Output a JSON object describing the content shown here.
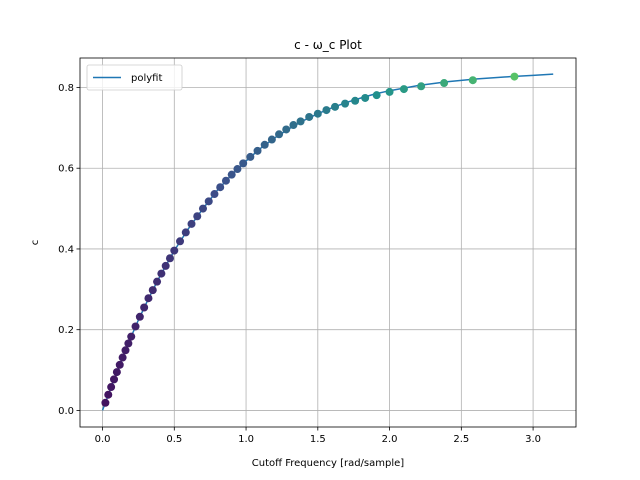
{
  "chart_data": {
    "type": "scatter",
    "title": "c - ω_c Plot",
    "xlabel": "Cutoff Frequency [rad/sample]",
    "ylabel": "c",
    "xlim": [
      -0.157,
      3.299
    ],
    "ylim": [
      -0.041,
      0.873
    ],
    "xticks": [
      0.0,
      0.5,
      1.0,
      1.5,
      2.0,
      2.5,
      3.0
    ],
    "xtick_labels": [
      "0.0",
      "0.5",
      "1.0",
      "1.5",
      "2.0",
      "2.5",
      "3.0"
    ],
    "yticks": [
      0.0,
      0.2,
      0.4,
      0.6,
      0.8
    ],
    "ytick_labels": [
      "0.0",
      "0.2",
      "0.4",
      "0.6",
      "0.8"
    ],
    "grid": true,
    "legend": {
      "placement": "upper-left",
      "entries": [
        "polyfit"
      ]
    },
    "colors": {
      "line": "#1f77b4",
      "grid": "#b0b0b0",
      "colormap": "viridis"
    },
    "series": [
      {
        "name": "polyfit",
        "type": "line",
        "x": [
          0.0,
          0.05,
          0.1,
          0.15,
          0.2,
          0.25,
          0.3,
          0.35,
          0.4,
          0.5,
          0.6,
          0.7,
          0.8,
          0.9,
          1.0,
          1.1,
          1.2,
          1.3,
          1.4,
          1.5,
          1.6,
          1.7,
          1.8,
          1.9,
          2.0,
          2.2,
          2.4,
          2.6,
          2.8,
          3.0,
          3.14
        ],
        "y": [
          0.0,
          0.048,
          0.095,
          0.14,
          0.183,
          0.224,
          0.262,
          0.298,
          0.332,
          0.396,
          0.451,
          0.5,
          0.545,
          0.584,
          0.618,
          0.649,
          0.675,
          0.698,
          0.718,
          0.735,
          0.75,
          0.763,
          0.774,
          0.784,
          0.792,
          0.805,
          0.814,
          0.821,
          0.826,
          0.83,
          0.833
        ]
      },
      {
        "name": "",
        "type": "scatter",
        "x": [
          0.02,
          0.04,
          0.06,
          0.08,
          0.1,
          0.12,
          0.14,
          0.16,
          0.18,
          0.2,
          0.23,
          0.26,
          0.29,
          0.32,
          0.35,
          0.38,
          0.41,
          0.44,
          0.47,
          0.5,
          0.54,
          0.58,
          0.62,
          0.66,
          0.7,
          0.74,
          0.78,
          0.82,
          0.86,
          0.9,
          0.94,
          0.98,
          1.03,
          1.08,
          1.13,
          1.18,
          1.23,
          1.28,
          1.33,
          1.38,
          1.44,
          1.5,
          1.56,
          1.62,
          1.69,
          1.76,
          1.83,
          1.91,
          2.0,
          2.1,
          2.22,
          2.38,
          2.58,
          2.87
        ],
        "y": [
          0.019,
          0.039,
          0.058,
          0.077,
          0.095,
          0.113,
          0.131,
          0.149,
          0.166,
          0.183,
          0.208,
          0.232,
          0.255,
          0.278,
          0.298,
          0.319,
          0.339,
          0.358,
          0.377,
          0.396,
          0.419,
          0.441,
          0.462,
          0.481,
          0.5,
          0.518,
          0.536,
          0.553,
          0.569,
          0.584,
          0.598,
          0.612,
          0.628,
          0.643,
          0.658,
          0.671,
          0.684,
          0.696,
          0.707,
          0.716,
          0.727,
          0.735,
          0.744,
          0.752,
          0.76,
          0.767,
          0.774,
          0.781,
          0.789,
          0.796,
          0.803,
          0.811,
          0.818,
          0.827
        ]
      }
    ]
  }
}
